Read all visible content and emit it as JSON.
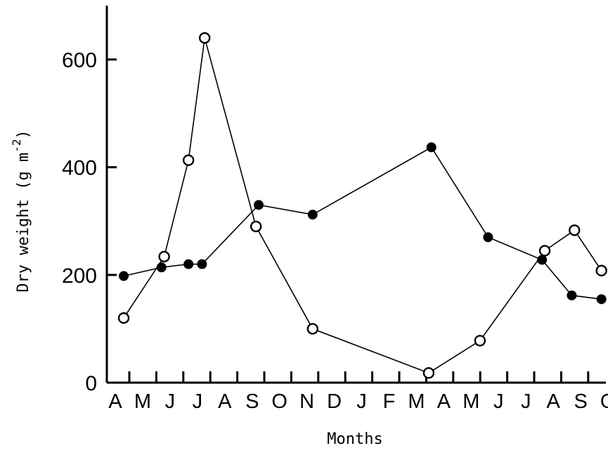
{
  "chart_data": {
    "type": "line",
    "xlabel": "Months",
    "ylabel": {
      "text": "Dry weight (g m",
      "sup": "-2",
      "close": ")"
    },
    "ylim": [
      0,
      700
    ],
    "yticks": [
      0,
      200,
      400,
      600
    ],
    "ytick_labels": [
      "0",
      "200",
      "400",
      "600"
    ],
    "x_categories": [
      "A",
      "M",
      "J",
      "J",
      "A",
      "S",
      "O",
      "N",
      "D",
      "J",
      "F",
      "M",
      "A",
      "M",
      "J",
      "J",
      "A",
      "S",
      "O"
    ],
    "grid": false,
    "legend": "none",
    "series": [
      {
        "marker": "filled-circle",
        "color": "#000000",
        "points": [
          {
            "x": 0,
            "y": 198
          },
          {
            "x": 1.4,
            "y": 214
          },
          {
            "x": 2.4,
            "y": 220
          },
          {
            "x": 2.9,
            "y": 220
          },
          {
            "x": 5.0,
            "y": 330
          },
          {
            "x": 7.0,
            "y": 312
          },
          {
            "x": 11.4,
            "y": 437
          },
          {
            "x": 13.5,
            "y": 270
          },
          {
            "x": 15.5,
            "y": 228
          },
          {
            "x": 16.6,
            "y": 162
          },
          {
            "x": 17.7,
            "y": 155
          }
        ]
      },
      {
        "marker": "open-circle",
        "color": "#000000",
        "points": [
          {
            "x": 0,
            "y": 120
          },
          {
            "x": 1.5,
            "y": 234
          },
          {
            "x": 2.4,
            "y": 413
          },
          {
            "x": 3.0,
            "y": 640
          },
          {
            "x": 4.9,
            "y": 290
          },
          {
            "x": 7.0,
            "y": 100
          },
          {
            "x": 11.3,
            "y": 18
          },
          {
            "x": 13.2,
            "y": 78
          },
          {
            "x": 15.6,
            "y": 245
          },
          {
            "x": 16.7,
            "y": 283
          },
          {
            "x": 17.7,
            "y": 208
          }
        ]
      }
    ]
  }
}
